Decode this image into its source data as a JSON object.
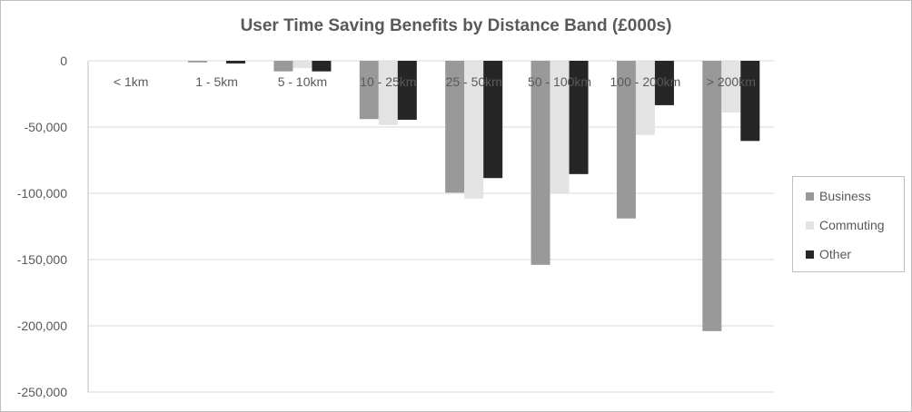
{
  "chart_data": {
    "type": "bar",
    "title": "User Time Saving Benefits by Distance Band (£000s)",
    "xlabel": "",
    "ylabel": "",
    "categories": [
      "< 1km",
      "1 - 5km",
      "5 - 10km",
      "10 - 25km",
      "25 - 50km",
      "50 - 100km",
      "100 - 200km",
      "> 200km"
    ],
    "series": [
      {
        "name": "Business",
        "color": "#999999",
        "values": [
          0,
          -1200,
          -8000,
          -44000,
          -99500,
          -154000,
          -119000,
          -204000
        ]
      },
      {
        "name": "Commuting",
        "color": "#e3e3e3",
        "values": [
          0,
          -300,
          -5500,
          -48500,
          -104000,
          -100000,
          -56000,
          -39000
        ]
      },
      {
        "name": "Other",
        "color": "#262626",
        "values": [
          0,
          -2000,
          -8000,
          -44500,
          -88500,
          -85500,
          -33500,
          -60500
        ]
      }
    ],
    "ylim": [
      -250000,
      0
    ],
    "yticks": [
      0,
      -50000,
      -100000,
      -150000,
      -200000,
      -250000
    ],
    "ytick_labels": [
      "0",
      "-50,000",
      "-100,000",
      "-150,000",
      "-200,000",
      "-250,000"
    ],
    "grid": true,
    "legend_position": "right"
  }
}
